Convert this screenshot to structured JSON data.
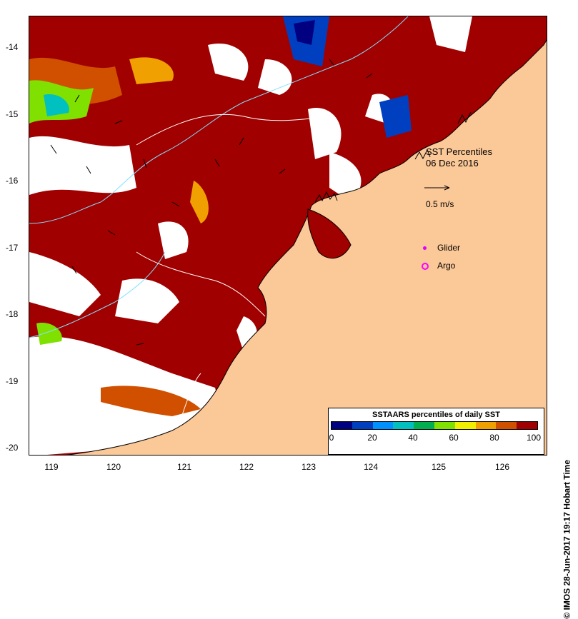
{
  "map": {
    "title_line1": "SST Percentiles",
    "title_line2": "06 Dec 2016",
    "scale_label": "0.5 m/s",
    "legend": [
      {
        "label": "Glider",
        "color": "#e000ff",
        "marker": "dot-icon"
      },
      {
        "label": "Argo",
        "color": "#ff00ff",
        "marker": "ring-icon"
      }
    ],
    "credit": "© IMOS 28-Jun-2017 19:17 Hobart Time",
    "y_ticks": [
      "-14",
      "-15",
      "-16",
      "-17",
      "-18",
      "-19",
      "-20"
    ],
    "x_ticks": [
      "119",
      "120",
      "121",
      "122",
      "123",
      "124",
      "125",
      "126"
    ],
    "colorbar": {
      "title": "SSTAARS percentiles of daily SST",
      "labels": [
        "0",
        "20",
        "40",
        "60",
        "80",
        "100"
      ],
      "colors": [
        "#000080",
        "#0040c0",
        "#0090ff",
        "#00c0c0",
        "#00b050",
        "#80e000",
        "#f0f000",
        "#f0a000",
        "#d05000",
        "#a00000"
      ]
    },
    "colors": {
      "land": "#fbc898",
      "high_percentile": "#a00000",
      "missing": "#ffffff"
    }
  }
}
